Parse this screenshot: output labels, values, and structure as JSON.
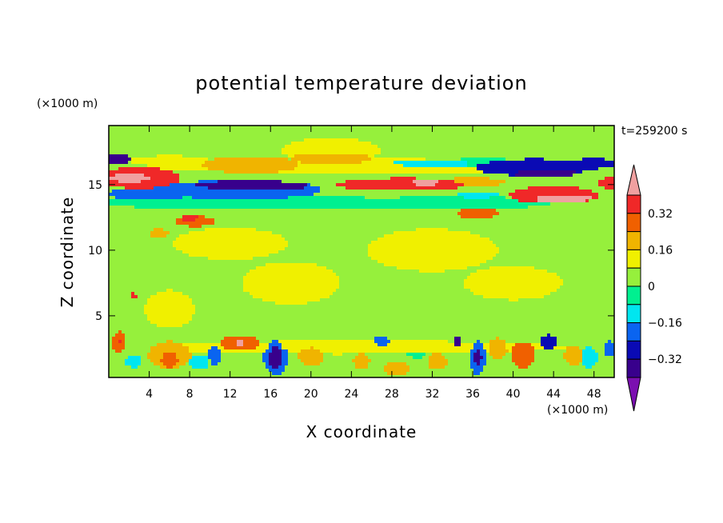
{
  "chart_data": {
    "type": "heatmap",
    "title": "potential temperature deviation",
    "xlabel": "X coordinate",
    "ylabel": "Z coordinate",
    "x_unit": "(×1000 m)",
    "y_unit": "(×1000 m)",
    "time_label": "t=259200 s",
    "xlim": [
      0,
      50
    ],
    "ylim": [
      0.3,
      19.5
    ],
    "x_ticks": [
      4,
      8,
      12,
      16,
      20,
      24,
      28,
      32,
      36,
      40,
      44,
      48
    ],
    "y_ticks": [
      5,
      10,
      15
    ],
    "colorbar": {
      "levels": [
        -0.4,
        -0.32,
        -0.24,
        -0.16,
        -0.08,
        0,
        0.08,
        0.16,
        0.24,
        0.32,
        0.4
      ],
      "colors": [
        "#7b0fb0",
        "#38008c",
        "#0a0ab4",
        "#0a64f0",
        "#00e6f0",
        "#00f090",
        "#96f03c",
        "#f0f000",
        "#f0b400",
        "#f06000",
        "#f02828",
        "#f0a0a0"
      ],
      "tick_labels": [
        "0.32",
        "0.16",
        "0",
        "−0.16",
        "−0.32"
      ],
      "tick_values": [
        0.32,
        0.16,
        0,
        -0.16,
        -0.32
      ]
    },
    "background_value": 0.04,
    "features": [
      {
        "x": 25,
        "z": 16.4,
        "rx": 26,
        "rz": 0.7,
        "v": 0.08
      },
      {
        "x": 22,
        "z": 17.6,
        "rx": 6,
        "rz": 1.2,
        "v": 0.08
      },
      {
        "x": 14,
        "z": 16.5,
        "rx": 6,
        "rz": 0.8,
        "v": 0.18
      },
      {
        "x": 22,
        "z": 17.0,
        "rx": 5,
        "rz": 0.6,
        "v": 0.16
      },
      {
        "x": 6,
        "z": 16.8,
        "rx": 5,
        "rz": 0.5,
        "v": 0.14
      },
      {
        "x": 3,
        "z": 15.5,
        "rx": 5,
        "rz": 1.0,
        "v": 0.34
      },
      {
        "x": 2.5,
        "z": 15.5,
        "rx": 3.5,
        "rz": 0.6,
        "v": 0.44
      },
      {
        "x": 0.6,
        "z": 16.9,
        "rx": 2.0,
        "rz": 0.5,
        "v": -0.34
      },
      {
        "x": 13,
        "z": 14.6,
        "rx": 10,
        "rz": 0.9,
        "v": -0.2
      },
      {
        "x": 14,
        "z": 14.9,
        "rx": 7,
        "rz": 0.5,
        "v": -0.34
      },
      {
        "x": 4,
        "z": 14.3,
        "rx": 5,
        "rz": 0.6,
        "v": -0.2
      },
      {
        "x": 16,
        "z": 13.6,
        "rx": 22,
        "rz": 0.6,
        "v": -0.08
      },
      {
        "x": 34,
        "z": 13.6,
        "rx": 12,
        "rz": 0.6,
        "v": -0.08
      },
      {
        "x": 29,
        "z": 15.0,
        "rx": 8,
        "rz": 0.6,
        "v": 0.32
      },
      {
        "x": 31,
        "z": 15.1,
        "rx": 2.5,
        "rz": 0.3,
        "v": 0.44
      },
      {
        "x": 36,
        "z": 15.2,
        "rx": 4,
        "rz": 0.4,
        "v": 0.2
      },
      {
        "x": 32,
        "z": 16.6,
        "rx": 5,
        "rz": 0.4,
        "v": -0.16
      },
      {
        "x": 37,
        "z": 16.6,
        "rx": 5,
        "rz": 0.5,
        "v": -0.08
      },
      {
        "x": 42,
        "z": 16.3,
        "rx": 7,
        "rz": 0.8,
        "v": -0.3
      },
      {
        "x": 43,
        "z": 15.9,
        "rx": 4,
        "rz": 0.5,
        "v": -0.4
      },
      {
        "x": 48,
        "z": 16.6,
        "rx": 2.5,
        "rz": 0.5,
        "v": -0.26
      },
      {
        "x": 44,
        "z": 14.2,
        "rx": 5.5,
        "rz": 0.8,
        "v": 0.36
      },
      {
        "x": 44.5,
        "z": 14.0,
        "rx": 4,
        "rz": 0.5,
        "v": 0.44
      },
      {
        "x": 49.5,
        "z": 15.1,
        "rx": 1.5,
        "rz": 0.5,
        "v": 0.36
      },
      {
        "x": 36.5,
        "z": 12.8,
        "rx": 2.5,
        "rz": 0.5,
        "v": 0.28
      },
      {
        "x": 36.5,
        "z": 14.2,
        "rx": 2.5,
        "rz": 0.3,
        "v": -0.14
      },
      {
        "x": 8.5,
        "z": 12.2,
        "rx": 2.5,
        "rz": 0.5,
        "v": 0.26
      },
      {
        "x": 8.0,
        "z": 12.4,
        "rx": 1.2,
        "rz": 0.3,
        "v": 0.34
      },
      {
        "x": 5.0,
        "z": 11.3,
        "rx": 1.2,
        "rz": 0.4,
        "v": 0.2
      },
      {
        "x": 12,
        "z": 10.5,
        "rx": 7,
        "rz": 1.5,
        "v": 0.12
      },
      {
        "x": 32,
        "z": 10.0,
        "rx": 8,
        "rz": 2.0,
        "v": 0.12
      },
      {
        "x": 40,
        "z": 7.5,
        "rx": 6,
        "rz": 1.6,
        "v": 0.12
      },
      {
        "x": 18,
        "z": 7.5,
        "rx": 6,
        "rz": 2.0,
        "v": 0.1
      },
      {
        "x": 6,
        "z": 5.5,
        "rx": 3,
        "rz": 1.8,
        "v": 0.12
      },
      {
        "x": 2.5,
        "z": 6.5,
        "rx": 0.4,
        "rz": 0.3,
        "v": 0.34
      },
      {
        "x": 25,
        "z": 2.6,
        "rx": 26,
        "rz": 0.6,
        "v": 0.14
      },
      {
        "x": 6,
        "z": 2.0,
        "rx": 2.6,
        "rz": 1.3,
        "v": 0.22
      },
      {
        "x": 6,
        "z": 1.8,
        "rx": 1.4,
        "rz": 0.9,
        "v": 0.3
      },
      {
        "x": 1,
        "z": 3.0,
        "rx": 0.8,
        "rz": 1.0,
        "v": 0.28
      },
      {
        "x": 1,
        "z": 3.0,
        "rx": 0.3,
        "rz": 0.35,
        "v": 0.36
      },
      {
        "x": 2.5,
        "z": 1.5,
        "rx": 1.0,
        "rz": 0.6,
        "v": -0.16
      },
      {
        "x": 9,
        "z": 1.5,
        "rx": 1.2,
        "rz": 0.7,
        "v": -0.1
      },
      {
        "x": 10.5,
        "z": 2.0,
        "rx": 0.8,
        "rz": 0.9,
        "v": -0.24
      },
      {
        "x": 13,
        "z": 2.9,
        "rx": 2.5,
        "rz": 0.7,
        "v": 0.28
      },
      {
        "x": 13,
        "z": 2.9,
        "rx": 1.0,
        "rz": 0.3,
        "v": 0.4
      },
      {
        "x": 16.5,
        "z": 1.8,
        "rx": 1.5,
        "rz": 1.6,
        "v": -0.24
      },
      {
        "x": 16.5,
        "z": 1.8,
        "rx": 1.0,
        "rz": 1.2,
        "v": -0.34
      },
      {
        "x": 20,
        "z": 2.0,
        "rx": 1.5,
        "rz": 1.1,
        "v": 0.2
      },
      {
        "x": 22.5,
        "z": 2.5,
        "rx": 0.8,
        "rz": 0.8,
        "v": 0.14
      },
      {
        "x": 25,
        "z": 1.5,
        "rx": 1.0,
        "rz": 0.8,
        "v": 0.2
      },
      {
        "x": 27,
        "z": 3.0,
        "rx": 1.0,
        "rz": 0.6,
        "v": -0.2
      },
      {
        "x": 28.5,
        "z": 1.0,
        "rx": 1.5,
        "rz": 0.7,
        "v": 0.2
      },
      {
        "x": 30.5,
        "z": 2.5,
        "rx": 1.5,
        "rz": 0.9,
        "v": -0.08
      },
      {
        "x": 32.5,
        "z": 1.5,
        "rx": 1.2,
        "rz": 0.8,
        "v": 0.2
      },
      {
        "x": 34.5,
        "z": 3.0,
        "rx": 0.5,
        "rz": 0.4,
        "v": -0.34
      },
      {
        "x": 36.5,
        "z": 1.8,
        "rx": 1.0,
        "rz": 1.6,
        "v": -0.24
      },
      {
        "x": 36.5,
        "z": 1.8,
        "rx": 0.6,
        "rz": 1.0,
        "v": -0.36
      },
      {
        "x": 38.5,
        "z": 2.5,
        "rx": 1.2,
        "rz": 1.0,
        "v": 0.2
      },
      {
        "x": 41,
        "z": 2.0,
        "rx": 1.5,
        "rz": 1.2,
        "v": 0.26
      },
      {
        "x": 43.5,
        "z": 3.0,
        "rx": 1.0,
        "rz": 0.7,
        "v": -0.28
      },
      {
        "x": 46,
        "z": 2.0,
        "rx": 1.2,
        "rz": 0.9,
        "v": 0.18
      },
      {
        "x": 47.5,
        "z": 1.8,
        "rx": 1.0,
        "rz": 1.0,
        "v": -0.14
      },
      {
        "x": 49.5,
        "z": 2.5,
        "rx": 0.6,
        "rz": 0.8,
        "v": -0.2
      }
    ]
  }
}
